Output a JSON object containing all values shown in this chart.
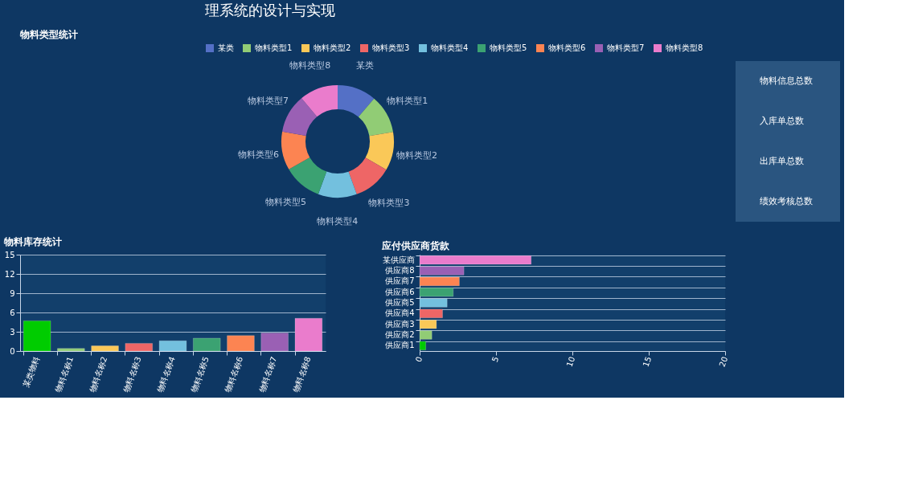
{
  "chart_data": [
    {
      "type": "other",
      "title": "理系统的设计与实现"
    },
    {
      "type": "donut",
      "title": "物料类型统计",
      "legend": "top right",
      "categories": [
        "某类",
        "物料类型1",
        "物料类型2",
        "物料类型3",
        "物料类型4",
        "物料类型5",
        "物料类型6",
        "物料类型7",
        "物料类型8"
      ],
      "values": [
        11.2,
        11.1,
        11.1,
        11.1,
        11.1,
        11.1,
        11.1,
        11.1,
        11.1
      ],
      "colors": [
        "#5470c6",
        "#91cc75",
        "#fac858",
        "#ee6666",
        "#73c0de",
        "#3ba272",
        "#fc8452",
        "#9a60b4",
        "#ea7ccc"
      ]
    },
    {
      "type": "other",
      "annotations": [
        "物料信息总数",
        "入库单总数",
        "出库单总数",
        "绩效考核总数"
      ]
    },
    {
      "type": "bar",
      "title": "物料库存统计",
      "grid": "y",
      "categories": [
        "某类物料",
        "物料名称1",
        "物料名称2",
        "物料名称3",
        "物料名称4",
        "物料名称5",
        "物料名称6",
        "物料名称7",
        "物料名称8"
      ],
      "values": [
        4.7,
        0.4,
        0.8,
        1.2,
        1.6,
        2.0,
        2.4,
        2.8,
        5.1
      ],
      "colors": [
        "#00cc00",
        "#91cc75",
        "#fac858",
        "#ee6666",
        "#73c0de",
        "#3ba272",
        "#fc8452",
        "#9a60b4",
        "#ea7ccc"
      ],
      "ylim": [
        0,
        15
      ],
      "yticks": [
        0,
        3,
        6,
        9,
        12,
        15
      ]
    },
    {
      "type": "bar",
      "orientation": "horizontal",
      "title": "应付供应商货款",
      "grid": "y",
      "categories": [
        "某供应商",
        "供应商8",
        "供应商7",
        "供应商6",
        "供应商5",
        "供应商4",
        "供应商3",
        "供应商2",
        "供应商1"
      ],
      "values": [
        7.3,
        2.9,
        2.6,
        2.2,
        1.8,
        1.5,
        1.1,
        0.8,
        0.4
      ],
      "colors": [
        "#ea7ccc",
        "#9a60b4",
        "#fc8452",
        "#3ba272",
        "#73c0de",
        "#ee6666",
        "#fac858",
        "#91cc75",
        "#00cc00"
      ],
      "xlim": [
        0,
        20
      ],
      "xticks": [
        0,
        5,
        10,
        15,
        20
      ]
    }
  ]
}
